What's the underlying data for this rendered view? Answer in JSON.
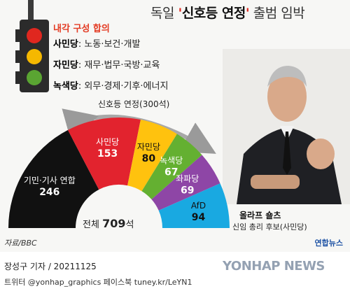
{
  "title": {
    "prefix": "독일 ",
    "quote_open": "'",
    "highlight": "신호등 연정",
    "quote_close": "'",
    "suffix": " 출범 임박"
  },
  "cabinet": {
    "title": "내각 구성 합의",
    "rows": [
      {
        "party": "사민당",
        "portfolio": ": 노동·보건·개발",
        "color": "#e0271f"
      },
      {
        "party": "자민당",
        "portfolio": ": 재무·법무·국방·교육",
        "color": "#f5b800"
      },
      {
        "party": "녹색당",
        "portfolio": ": 외무·경제·기후·에너지",
        "color": "#5aa532"
      }
    ]
  },
  "coalition_label": "신호등 연정(300석)",
  "seats": [
    {
      "party": "기민·기사 연합",
      "seats": "246",
      "color": "#111111"
    },
    {
      "party": "사민당",
      "seats": "153",
      "color": "#e2232e"
    },
    {
      "party": "자민당",
      "seats": "80",
      "color": "#ffc20e"
    },
    {
      "party": "녹색당",
      "seats": "67",
      "color": "#64b031"
    },
    {
      "party": "좌파당",
      "seats": "69",
      "color": "#8e46a6"
    },
    {
      "party": "AfD",
      "seats": "94",
      "color": "#19a9e1"
    }
  ],
  "total": {
    "label": "전체 ",
    "value": "709",
    "unit": "석"
  },
  "person": {
    "name": "올라프 숄츠",
    "role": "신임 총리 후보(사민당)"
  },
  "source": "자료/BBC",
  "agency_logo": "연합뉴스",
  "footer": {
    "byline": "장성구 기자 / 20211125",
    "social": "트위터 @yonhap_graphics  페이스북 tuney.kr/LeYN1",
    "watermark": "YONHAP NEWS"
  }
}
